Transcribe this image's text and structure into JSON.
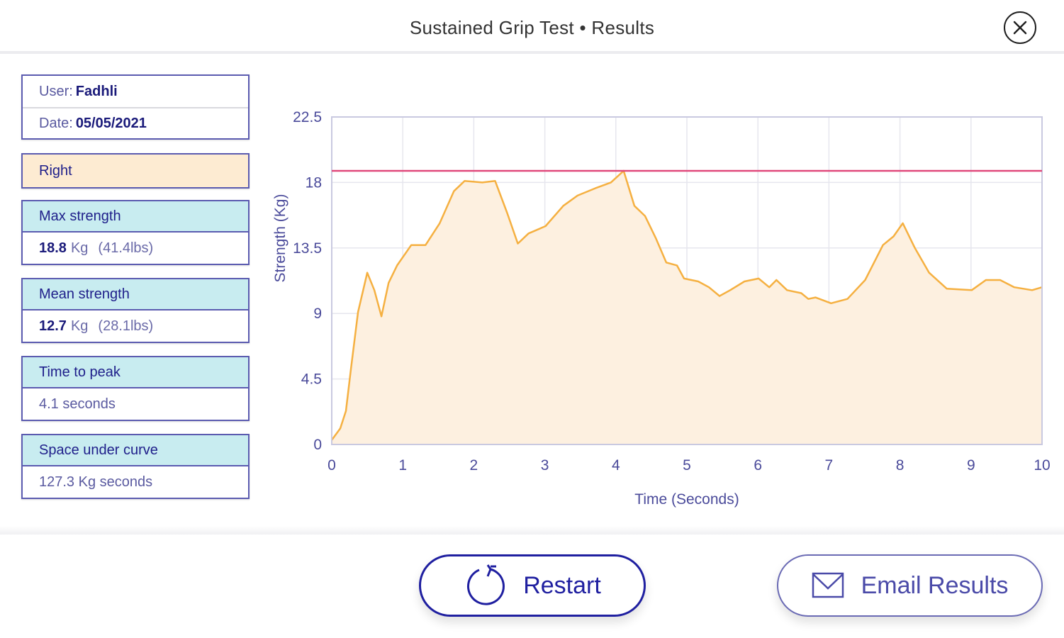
{
  "header": {
    "title": "Sustained Grip Test • Results",
    "close_icon": "close-circle-icon"
  },
  "sidebar": {
    "user_label": "User: ",
    "user_value": "Fadhli",
    "date_label": "Date: ",
    "date_value": "05/05/2021",
    "hand": "Right",
    "max_strength": {
      "label": "Max strength",
      "value": "18.8",
      "unit": "Kg",
      "alt": "(41.4lbs)"
    },
    "mean_strength": {
      "label": "Mean strength",
      "value": "12.7",
      "unit": "Kg",
      "alt": "(28.1lbs)"
    },
    "time_to_peak": {
      "label": "Time to peak",
      "value": "4.1 seconds"
    },
    "space_under_curve": {
      "label": "Space under curve",
      "value": "127.3 Kg seconds"
    }
  },
  "buttons": {
    "restart": {
      "label": "Restart",
      "icon": "restart-icon"
    },
    "email": {
      "label": "Email Results",
      "icon": "envelope-icon"
    }
  },
  "colors": {
    "accent": "#1f1fa0",
    "card_border": "#5b5bb0",
    "card_header_bg": "#c8ecf0",
    "hand_bg": "#fdebd2",
    "curve_line": "#f5b041",
    "curve_fill": "#fdf0e0",
    "max_line": "#e0487a",
    "axis_text": "#4a4a9a"
  },
  "chart_data": {
    "type": "area",
    "title": "",
    "xlabel": "Time (Seconds)",
    "ylabel": "Strength (Kg)",
    "xlim": [
      0,
      10
    ],
    "ylim": [
      0,
      22.5
    ],
    "x_ticks": [
      "0",
      "1",
      "2",
      "3",
      "4",
      "5",
      "6",
      "7",
      "8",
      "9",
      "10"
    ],
    "y_ticks": [
      "0",
      "4.5",
      "9",
      "13.5",
      "18",
      "22.5"
    ],
    "grid": true,
    "legend": null,
    "reference_line": {
      "y": 18.8,
      "label": "Max strength",
      "color": "#e0487a"
    },
    "series": [
      {
        "name": "Strength",
        "x": [
          0,
          0.12,
          0.2,
          0.27,
          0.37,
          0.5,
          0.6,
          0.7,
          0.8,
          0.92,
          1.12,
          1.32,
          1.52,
          1.72,
          1.87,
          2.12,
          2.3,
          2.47,
          2.62,
          2.77,
          3.01,
          3.26,
          3.46,
          3.71,
          3.93,
          4.11,
          4.26,
          4.41,
          4.56,
          4.71,
          4.86,
          4.96,
          5.16,
          5.31,
          5.46,
          5.61,
          5.81,
          6.01,
          6.16,
          6.26,
          6.41,
          6.61,
          6.71,
          6.81,
          7.03,
          7.26,
          7.51,
          7.76,
          7.91,
          8.04,
          8.21,
          8.41,
          8.66,
          9.01,
          9.21,
          9.41,
          9.61,
          9.86,
          10.0
        ],
        "values": [
          0.3,
          1.1,
          2.3,
          5.2,
          9.1,
          11.8,
          10.6,
          8.8,
          11.1,
          12.3,
          13.7,
          13.7,
          15.2,
          17.4,
          18.1,
          18.0,
          18.1,
          15.9,
          13.8,
          14.5,
          15.0,
          16.4,
          17.1,
          17.6,
          18.0,
          18.8,
          16.4,
          15.7,
          14.2,
          12.5,
          12.3,
          11.4,
          11.2,
          10.8,
          10.2,
          10.6,
          11.2,
          11.4,
          10.8,
          11.3,
          10.6,
          10.4,
          10.0,
          10.1,
          9.7,
          10.0,
          11.3,
          13.7,
          14.3,
          15.2,
          13.5,
          11.8,
          10.7,
          10.6,
          11.3,
          11.3,
          10.8,
          10.6,
          10.8
        ]
      }
    ]
  }
}
